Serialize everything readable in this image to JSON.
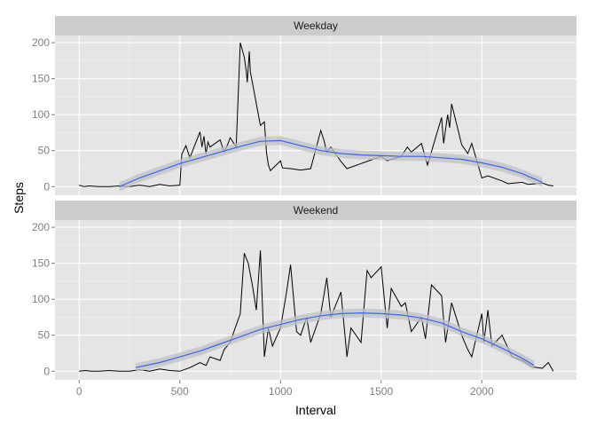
{
  "chart_data": {
    "type": "line",
    "xlabel": "Interval",
    "ylabel": "Steps",
    "xlim": [
      -120,
      2470
    ],
    "ylim": [
      -12,
      210
    ],
    "x_ticks": [
      0,
      500,
      1000,
      1500,
      2000
    ],
    "x_tick_labels": [
      "0",
      "500",
      "1000",
      "1500",
      "2000"
    ],
    "y_ticks": [
      0,
      50,
      100,
      150,
      200
    ],
    "y_tick_labels": [
      "0",
      "50",
      "100",
      "150",
      "200"
    ],
    "grid": true,
    "colors": {
      "panel_bg": "#e5e5e5",
      "strip_bg": "#cccccc",
      "grid_major": "#ffffff",
      "grid_minor": "#f2f2f2",
      "series_line": "#000000",
      "smooth_line": "#3366ff",
      "smooth_band": "#c0c0c0"
    },
    "panels": [
      {
        "facet": "Weekday",
        "series": [
          {
            "kind": "raw",
            "x": [
              0,
              25,
              50,
              100,
              150,
              200,
              250,
              300,
              350,
              400,
              450,
              500,
              510,
              530,
              550,
              600,
              610,
              620,
              630,
              640,
              650,
              700,
              720,
              740,
              750,
              780,
              800,
              820,
              830,
              835,
              845,
              850,
              900,
              920,
              930,
              940,
              950,
              1000,
              1010,
              1050,
              1100,
              1150,
              1200,
              1215,
              1230,
              1250,
              1300,
              1330,
              1400,
              1430,
              1500,
              1530,
              1600,
              1630,
              1650,
              1700,
              1730,
              1800,
              1810,
              1830,
              1840,
              1850,
              1900,
              1930,
              1950,
              2000,
              2030,
              2100,
              2130,
              2200,
              2230,
              2300,
              2330,
              2355
            ],
            "y": [
              2,
              0,
              1,
              0,
              0,
              1,
              0,
              2,
              0,
              3,
              1,
              2,
              45,
              57,
              40,
              76,
              55,
              70,
              45,
              62,
              55,
              65,
              48,
              60,
              68,
              55,
              200,
              180,
              160,
              145,
              188,
              160,
              85,
              90,
              48,
              30,
              22,
              36,
              26,
              25,
              23,
              25,
              78,
              65,
              48,
              55,
              35,
              25,
              32,
              35,
              42,
              36,
              42,
              55,
              48,
              60,
              30,
              96,
              60,
              100,
              82,
              115,
              58,
              46,
              60,
              12,
              15,
              8,
              4,
              6,
              3,
              5,
              2,
              1
            ]
          },
          {
            "kind": "smooth",
            "x": [
              200,
              300,
              400,
              500,
              600,
              700,
              800,
              900,
              1000,
              1100,
              1200,
              1300,
              1400,
              1500,
              1600,
              1700,
              1800,
              1900,
              2000,
              2100,
              2200,
              2300
            ],
            "y": [
              0,
              12,
              22,
              32,
              40,
              48,
              56,
              63,
              64,
              57,
              50,
              46,
              44,
              43,
              42,
              42,
              40,
              38,
              33,
              27,
              18,
              6
            ]
          }
        ]
      },
      {
        "facet": "Weekend",
        "series": [
          {
            "kind": "raw",
            "x": [
              0,
              30,
              60,
              100,
              150,
              200,
              250,
              300,
              350,
              400,
              450,
              500,
              550,
              600,
              630,
              650,
              700,
              720,
              750,
              800,
              820,
              840,
              860,
              880,
              900,
              920,
              940,
              960,
              1000,
              1030,
              1050,
              1080,
              1100,
              1130,
              1150,
              1200,
              1230,
              1250,
              1300,
              1330,
              1350,
              1400,
              1430,
              1450,
              1500,
              1530,
              1550,
              1600,
              1620,
              1650,
              1700,
              1720,
              1750,
              1800,
              1820,
              1850,
              1900,
              1930,
              1950,
              2000,
              2010,
              2030,
              2050,
              2100,
              2150,
              2200,
              2250,
              2300,
              2330,
              2355
            ],
            "y": [
              0,
              1,
              0,
              0,
              1,
              0,
              0,
              2,
              0,
              3,
              1,
              0,
              5,
              12,
              8,
              20,
              15,
              30,
              40,
              80,
              164,
              150,
              120,
              85,
              168,
              20,
              60,
              35,
              60,
              110,
              148,
              55,
              50,
              75,
              40,
              80,
              130,
              75,
              110,
              20,
              60,
              40,
              140,
              130,
              145,
              60,
              115,
              90,
              95,
              55,
              75,
              45,
              120,
              105,
              40,
              95,
              50,
              30,
              20,
              80,
              40,
              85,
              35,
              50,
              20,
              15,
              6,
              4,
              12,
              0
            ]
          },
          {
            "kind": "smooth",
            "x": [
              280,
              400,
              500,
              600,
              700,
              800,
              900,
              1000,
              1100,
              1200,
              1300,
              1400,
              1500,
              1600,
              1700,
              1800,
              1900,
              2000,
              2100,
              2200,
              2260
            ],
            "y": [
              5,
              12,
              20,
              28,
              38,
              48,
              58,
              65,
              72,
              77,
              80,
              81,
              80,
              78,
              74,
              67,
              55,
              45,
              32,
              18,
              8
            ]
          }
        ]
      }
    ]
  }
}
